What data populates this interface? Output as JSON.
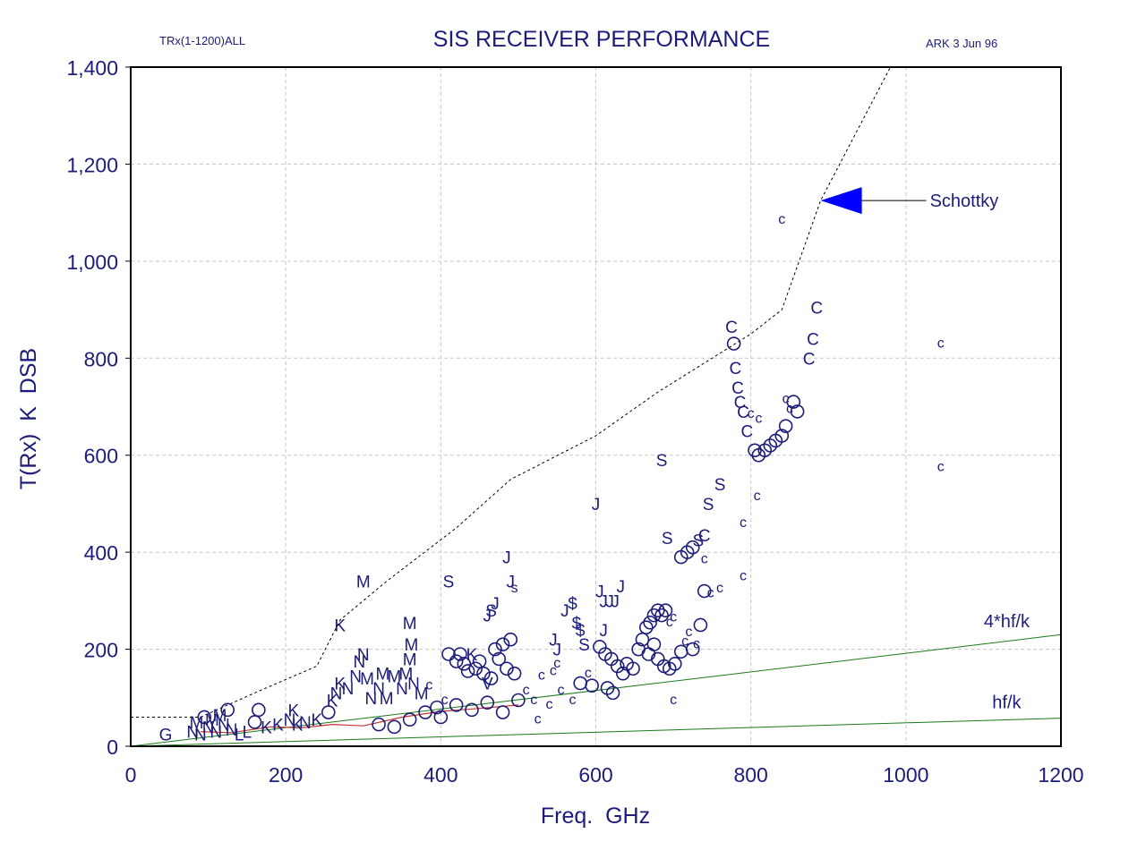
{
  "header": {
    "left_note": "TRx(1-1200)ALL",
    "right_note": "ARK  3 Jun 96"
  },
  "colors": {
    "text": "#1c1c7a",
    "markers": "#1c1c7a",
    "schottky_line": "#000000",
    "limit_lines": "#1a7a1a",
    "median_line": "#c83232",
    "arrow": "#0000ff"
  },
  "chart_data": {
    "type": "scatter",
    "title": "SIS RECEIVER PERFORMANCE",
    "xlabel": "Freq.  GHz",
    "ylabel": "T(Rx)  K  DSB",
    "xlim": [
      0,
      1200
    ],
    "ylim": [
      0,
      1400
    ],
    "x_ticks": [
      "0",
      "200",
      "400",
      "600",
      "800",
      "1000",
      "1200"
    ],
    "y_ticks": [
      "0",
      "200",
      "400",
      "600",
      "800",
      "1,000",
      "1,200",
      "1,400"
    ],
    "grid": true,
    "annotations": [
      {
        "text": "Schottky",
        "arrow_to": [
          890,
          1125
        ]
      },
      {
        "text": "4*hf/k",
        "x": 1130,
        "y": 245
      },
      {
        "text": "hf/k",
        "x": 1130,
        "y": 78
      }
    ],
    "series": [
      {
        "style": "dashed-line",
        "x": [
          0,
          90,
          160,
          240,
          270,
          330,
          420,
          490,
          600,
          680,
          800,
          840,
          890,
          980
        ],
        "y": [
          60,
          60,
          110,
          165,
          260,
          340,
          450,
          550,
          640,
          730,
          850,
          900,
          1125,
          1400
        ]
      },
      {
        "style": "solid-line",
        "x": [
          0,
          1200
        ],
        "y": [
          0,
          230
        ]
      },
      {
        "style": "solid-line",
        "x": [
          0,
          1200
        ],
        "y": [
          0,
          58
        ]
      },
      {
        "style": "median-line",
        "x": [
          90,
          130,
          180,
          220,
          260,
          300,
          350,
          400,
          450,
          500
        ],
        "y": [
          30,
          28,
          40,
          38,
          45,
          42,
          60,
          72,
          78,
          85
        ]
      },
      {
        "style": "points",
        "points": [
          {
            "x": 45,
            "y": 25,
            "m": "G"
          },
          {
            "x": 80,
            "y": 30,
            "m": "N"
          },
          {
            "x": 85,
            "y": 50,
            "m": "M"
          },
          {
            "x": 90,
            "y": 25,
            "m": "N"
          },
          {
            "x": 95,
            "y": 60,
            "m": "O"
          },
          {
            "x": 100,
            "y": 40,
            "m": "N"
          },
          {
            "x": 105,
            "y": 55,
            "m": "M"
          },
          {
            "x": 110,
            "y": 30,
            "m": "N"
          },
          {
            "x": 115,
            "y": 65,
            "m": "M"
          },
          {
            "x": 120,
            "y": 45,
            "m": "N"
          },
          {
            "x": 125,
            "y": 75,
            "m": "O"
          },
          {
            "x": 130,
            "y": 35,
            "m": "N"
          },
          {
            "x": 140,
            "y": 25,
            "m": "L"
          },
          {
            "x": 150,
            "y": 30,
            "m": "L"
          },
          {
            "x": 160,
            "y": 50,
            "m": "O"
          },
          {
            "x": 165,
            "y": 75,
            "m": "O"
          },
          {
            "x": 175,
            "y": 40,
            "m": "K"
          },
          {
            "x": 190,
            "y": 45,
            "m": "K"
          },
          {
            "x": 205,
            "y": 55,
            "m": "N"
          },
          {
            "x": 215,
            "y": 45,
            "m": "K"
          },
          {
            "x": 225,
            "y": 50,
            "m": "N"
          },
          {
            "x": 240,
            "y": 55,
            "m": "K"
          },
          {
            "x": 210,
            "y": 75,
            "m": "K"
          },
          {
            "x": 255,
            "y": 70,
            "m": "O"
          },
          {
            "x": 260,
            "y": 95,
            "m": "K"
          },
          {
            "x": 265,
            "y": 110,
            "m": "N"
          },
          {
            "x": 270,
            "y": 130,
            "m": "K"
          },
          {
            "x": 280,
            "y": 120,
            "m": "N"
          },
          {
            "x": 290,
            "y": 145,
            "m": "N"
          },
          {
            "x": 295,
            "y": 175,
            "m": "N"
          },
          {
            "x": 300,
            "y": 190,
            "m": "N"
          },
          {
            "x": 305,
            "y": 140,
            "m": "M"
          },
          {
            "x": 310,
            "y": 100,
            "m": "N"
          },
          {
            "x": 320,
            "y": 120,
            "m": "N"
          },
          {
            "x": 325,
            "y": 150,
            "m": "M"
          },
          {
            "x": 330,
            "y": 100,
            "m": "M"
          },
          {
            "x": 340,
            "y": 145,
            "m": "M"
          },
          {
            "x": 350,
            "y": 120,
            "m": "N"
          },
          {
            "x": 355,
            "y": 150,
            "m": "M"
          },
          {
            "x": 360,
            "y": 180,
            "m": "M"
          },
          {
            "x": 362,
            "y": 210,
            "m": "M"
          },
          {
            "x": 360,
            "y": 255,
            "m": "M"
          },
          {
            "x": 300,
            "y": 340,
            "m": "M"
          },
          {
            "x": 270,
            "y": 250,
            "m": "K"
          },
          {
            "x": 365,
            "y": 130,
            "m": "N"
          },
          {
            "x": 375,
            "y": 110,
            "m": "M"
          },
          {
            "x": 320,
            "y": 45,
            "m": "O"
          },
          {
            "x": 340,
            "y": 40,
            "m": "O"
          },
          {
            "x": 360,
            "y": 55,
            "m": "O"
          },
          {
            "x": 380,
            "y": 70,
            "m": "O"
          },
          {
            "x": 395,
            "y": 80,
            "m": "O"
          },
          {
            "x": 400,
            "y": 60,
            "m": "O"
          },
          {
            "x": 385,
            "y": 130,
            "m": "c"
          },
          {
            "x": 405,
            "y": 100,
            "m": "c"
          },
          {
            "x": 410,
            "y": 190,
            "m": "O"
          },
          {
            "x": 420,
            "y": 175,
            "m": "O"
          },
          {
            "x": 425,
            "y": 190,
            "m": "O"
          },
          {
            "x": 430,
            "y": 170,
            "m": "O"
          },
          {
            "x": 435,
            "y": 155,
            "m": "O"
          },
          {
            "x": 440,
            "y": 190,
            "m": "K"
          },
          {
            "x": 445,
            "y": 160,
            "m": "O"
          },
          {
            "x": 450,
            "y": 175,
            "m": "O"
          },
          {
            "x": 455,
            "y": 150,
            "m": "O"
          },
          {
            "x": 460,
            "y": 130,
            "m": "V"
          },
          {
            "x": 465,
            "y": 140,
            "m": "O"
          },
          {
            "x": 470,
            "y": 200,
            "m": "O"
          },
          {
            "x": 475,
            "y": 180,
            "m": "O"
          },
          {
            "x": 480,
            "y": 210,
            "m": "O"
          },
          {
            "x": 485,
            "y": 160,
            "m": "O"
          },
          {
            "x": 490,
            "y": 220,
            "m": "O"
          },
          {
            "x": 495,
            "y": 150,
            "m": "O"
          },
          {
            "x": 420,
            "y": 85,
            "m": "O"
          },
          {
            "x": 440,
            "y": 75,
            "m": "O"
          },
          {
            "x": 460,
            "y": 90,
            "m": "O"
          },
          {
            "x": 480,
            "y": 70,
            "m": "O"
          },
          {
            "x": 500,
            "y": 95,
            "m": "O"
          },
          {
            "x": 410,
            "y": 340,
            "m": "S"
          },
          {
            "x": 465,
            "y": 280,
            "m": "S"
          },
          {
            "x": 470,
            "y": 295,
            "m": "J"
          },
          {
            "x": 460,
            "y": 270,
            "m": "J"
          },
          {
            "x": 485,
            "y": 390,
            "m": "J"
          },
          {
            "x": 490,
            "y": 340,
            "m": "J"
          },
          {
            "x": 495,
            "y": 330,
            "m": "s"
          },
          {
            "x": 510,
            "y": 120,
            "m": "c"
          },
          {
            "x": 520,
            "y": 100,
            "m": "c"
          },
          {
            "x": 530,
            "y": 150,
            "m": "c"
          },
          {
            "x": 525,
            "y": 60,
            "m": "c"
          },
          {
            "x": 540,
            "y": 90,
            "m": "c"
          },
          {
            "x": 545,
            "y": 160,
            "m": "c"
          },
          {
            "x": 550,
            "y": 175,
            "m": "c"
          },
          {
            "x": 555,
            "y": 120,
            "m": "c"
          },
          {
            "x": 545,
            "y": 220,
            "m": "J"
          },
          {
            "x": 550,
            "y": 200,
            "m": "J"
          },
          {
            "x": 560,
            "y": 280,
            "m": "J"
          },
          {
            "x": 570,
            "y": 295,
            "m": "$"
          },
          {
            "x": 575,
            "y": 255,
            "m": "$"
          },
          {
            "x": 580,
            "y": 240,
            "m": "$"
          },
          {
            "x": 585,
            "y": 210,
            "m": "S"
          },
          {
            "x": 570,
            "y": 100,
            "m": "c"
          },
          {
            "x": 580,
            "y": 130,
            "m": "O"
          },
          {
            "x": 590,
            "y": 155,
            "m": "c"
          },
          {
            "x": 595,
            "y": 125,
            "m": "O"
          },
          {
            "x": 600,
            "y": 500,
            "m": "J"
          },
          {
            "x": 605,
            "y": 320,
            "m": "J"
          },
          {
            "x": 610,
            "y": 300,
            "m": "J"
          },
          {
            "x": 618,
            "y": 300,
            "m": "J"
          },
          {
            "x": 625,
            "y": 300,
            "m": "J"
          },
          {
            "x": 632,
            "y": 330,
            "m": "J"
          },
          {
            "x": 610,
            "y": 240,
            "m": "J"
          },
          {
            "x": 605,
            "y": 205,
            "m": "O"
          },
          {
            "x": 612,
            "y": 190,
            "m": "O"
          },
          {
            "x": 620,
            "y": 180,
            "m": "O"
          },
          {
            "x": 628,
            "y": 165,
            "m": "O"
          },
          {
            "x": 615,
            "y": 120,
            "m": "O"
          },
          {
            "x": 622,
            "y": 110,
            "m": "O"
          },
          {
            "x": 635,
            "y": 150,
            "m": "O"
          },
          {
            "x": 640,
            "y": 170,
            "m": "O"
          },
          {
            "x": 648,
            "y": 160,
            "m": "O"
          },
          {
            "x": 655,
            "y": 200,
            "m": "O"
          },
          {
            "x": 660,
            "y": 220,
            "m": "O"
          },
          {
            "x": 665,
            "y": 245,
            "m": "O"
          },
          {
            "x": 670,
            "y": 255,
            "m": "O"
          },
          {
            "x": 675,
            "y": 270,
            "m": "O"
          },
          {
            "x": 680,
            "y": 280,
            "m": "O"
          },
          {
            "x": 685,
            "y": 270,
            "m": "O"
          },
          {
            "x": 690,
            "y": 280,
            "m": "O"
          },
          {
            "x": 695,
            "y": 260,
            "m": "c"
          },
          {
            "x": 700,
            "y": 270,
            "m": "c"
          },
          {
            "x": 668,
            "y": 190,
            "m": "O"
          },
          {
            "x": 675,
            "y": 210,
            "m": "O"
          },
          {
            "x": 680,
            "y": 180,
            "m": "O"
          },
          {
            "x": 688,
            "y": 165,
            "m": "O"
          },
          {
            "x": 695,
            "y": 160,
            "m": "O"
          },
          {
            "x": 702,
            "y": 170,
            "m": "O"
          },
          {
            "x": 710,
            "y": 195,
            "m": "O"
          },
          {
            "x": 715,
            "y": 220,
            "m": "c"
          },
          {
            "x": 720,
            "y": 240,
            "m": "c"
          },
          {
            "x": 725,
            "y": 200,
            "m": "O"
          },
          {
            "x": 730,
            "y": 215,
            "m": "c"
          },
          {
            "x": 735,
            "y": 250,
            "m": "O"
          },
          {
            "x": 740,
            "y": 320,
            "m": "O"
          },
          {
            "x": 748,
            "y": 320,
            "m": "c"
          },
          {
            "x": 760,
            "y": 330,
            "m": "c"
          },
          {
            "x": 685,
            "y": 590,
            "m": "S"
          },
          {
            "x": 692,
            "y": 430,
            "m": "S"
          },
          {
            "x": 700,
            "y": 100,
            "m": "c"
          },
          {
            "x": 710,
            "y": 390,
            "m": "O"
          },
          {
            "x": 718,
            "y": 400,
            "m": "O"
          },
          {
            "x": 725,
            "y": 410,
            "m": "O"
          },
          {
            "x": 732,
            "y": 425,
            "m": "S"
          },
          {
            "x": 740,
            "y": 435,
            "m": "C"
          },
          {
            "x": 740,
            "y": 390,
            "m": "c"
          },
          {
            "x": 745,
            "y": 500,
            "m": "S"
          },
          {
            "x": 760,
            "y": 540,
            "m": "S"
          },
          {
            "x": 790,
            "y": 465,
            "m": "c"
          },
          {
            "x": 790,
            "y": 355,
            "m": "c"
          },
          {
            "x": 808,
            "y": 520,
            "m": "c"
          },
          {
            "x": 775,
            "y": 865,
            "m": "C"
          },
          {
            "x": 778,
            "y": 830,
            "m": "O"
          },
          {
            "x": 780,
            "y": 780,
            "m": "C"
          },
          {
            "x": 783,
            "y": 740,
            "m": "C"
          },
          {
            "x": 786,
            "y": 710,
            "m": "C"
          },
          {
            "x": 790,
            "y": 690,
            "m": "C"
          },
          {
            "x": 795,
            "y": 650,
            "m": "C"
          },
          {
            "x": 800,
            "y": 690,
            "m": "c"
          },
          {
            "x": 805,
            "y": 610,
            "m": "O"
          },
          {
            "x": 810,
            "y": 600,
            "m": "O"
          },
          {
            "x": 818,
            "y": 610,
            "m": "O"
          },
          {
            "x": 825,
            "y": 620,
            "m": "O"
          },
          {
            "x": 832,
            "y": 630,
            "m": "O"
          },
          {
            "x": 840,
            "y": 640,
            "m": "O"
          },
          {
            "x": 845,
            "y": 660,
            "m": "O"
          },
          {
            "x": 850,
            "y": 700,
            "m": "c"
          },
          {
            "x": 845,
            "y": 720,
            "m": "c"
          },
          {
            "x": 855,
            "y": 710,
            "m": "O"
          },
          {
            "x": 860,
            "y": 690,
            "m": "O"
          },
          {
            "x": 810,
            "y": 680,
            "m": "c"
          },
          {
            "x": 840,
            "y": 1090,
            "m": "c"
          },
          {
            "x": 875,
            "y": 800,
            "m": "C"
          },
          {
            "x": 880,
            "y": 840,
            "m": "C"
          },
          {
            "x": 885,
            "y": 905,
            "m": "C"
          },
          {
            "x": 1045,
            "y": 835,
            "m": "c"
          },
          {
            "x": 1045,
            "y": 580,
            "m": "c"
          }
        ]
      }
    ]
  }
}
